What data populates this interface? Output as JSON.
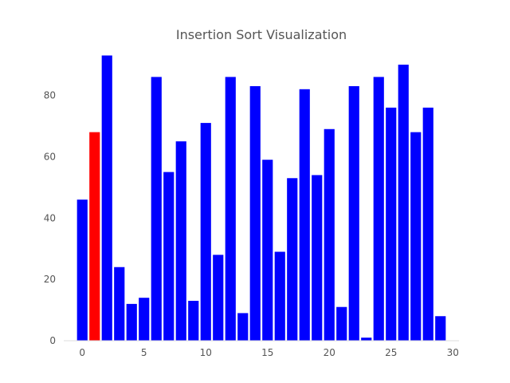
{
  "chart_data": {
    "type": "bar",
    "title": "Insertion Sort Visualization",
    "xlabel": "",
    "ylabel": "",
    "x": [
      0,
      1,
      2,
      3,
      4,
      5,
      6,
      7,
      8,
      9,
      10,
      11,
      12,
      13,
      14,
      15,
      16,
      17,
      18,
      19,
      20,
      21,
      22,
      23,
      24,
      25,
      26,
      27,
      28,
      29
    ],
    "values": [
      46,
      68,
      93,
      24,
      12,
      14,
      86,
      55,
      65,
      13,
      71,
      28,
      86,
      9,
      83,
      59,
      29,
      53,
      82,
      54,
      69,
      11,
      83,
      1,
      86,
      76,
      90,
      68,
      76,
      8
    ],
    "highlight_index": 1,
    "colors": {
      "bar": "#0000ff",
      "highlight": "#ff0000"
    },
    "xlim": [
      -1.5,
      30.5
    ],
    "ylim": [
      0,
      96
    ],
    "xticks": [
      0,
      5,
      10,
      15,
      20,
      25,
      30
    ],
    "xtick_labels": [
      "0",
      "5",
      "10",
      "15",
      "20",
      "25",
      "30"
    ],
    "yticks": [
      0,
      20,
      40,
      60,
      80
    ],
    "ytick_labels": [
      "0",
      "20",
      "40",
      "60",
      "80"
    ],
    "grid": false,
    "legend": "none"
  }
}
